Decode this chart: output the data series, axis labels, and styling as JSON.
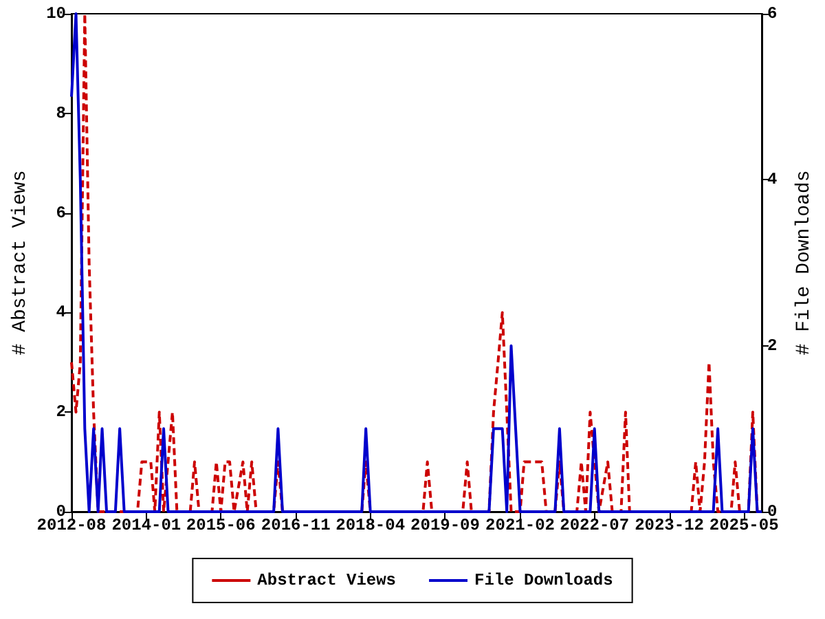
{
  "chart_data": {
    "type": "line",
    "ylabel": "# Abstract Views",
    "y2label": "# File Downloads",
    "xlim": [
      "2012-08",
      "2025-09"
    ],
    "xticks": [
      "2012-08",
      "2014-01",
      "2015-06",
      "2016-11",
      "2018-04",
      "2019-09",
      "2021-02",
      "2022-07",
      "2023-12",
      "2025-05"
    ],
    "ylim": [
      0,
      10
    ],
    "yticks": [
      0,
      2,
      4,
      6,
      8,
      10
    ],
    "y2lim": [
      0,
      6
    ],
    "y2ticks": [
      0,
      2,
      4,
      6
    ],
    "grid": false,
    "legend": "bottom",
    "marker": "none",
    "series": [
      {
        "name": "Abstract Views",
        "color": "#cc0000",
        "line_style": "dashed",
        "x": [
          "2012-08",
          "2012-09",
          "2012-10",
          "2012-11",
          "2012-12",
          "2013-01",
          "2013-02",
          "2013-11",
          "2013-12",
          "2014-02",
          "2014-03",
          "2014-04",
          "2014-05",
          "2014-07",
          "2014-08",
          "2014-11",
          "2014-12",
          "2015-01",
          "2015-04",
          "2015-05",
          "2015-06",
          "2015-07",
          "2015-08",
          "2015-09",
          "2015-11",
          "2015-12",
          "2016-01",
          "2016-02",
          "2016-06",
          "2016-07",
          "2016-08",
          "2018-02",
          "2018-03",
          "2018-04",
          "2019-04",
          "2019-05",
          "2019-06",
          "2020-01",
          "2020-02",
          "2020-03",
          "2020-07",
          "2020-08",
          "2020-09",
          "2020-10",
          "2020-11",
          "2020-12",
          "2021-02",
          "2021-03",
          "2021-07",
          "2021-08",
          "2021-10",
          "2021-11",
          "2021-12",
          "2022-03",
          "2022-04",
          "2022-05",
          "2022-06",
          "2022-07",
          "2022-08",
          "2022-10",
          "2022-11",
          "2023-01",
          "2023-02",
          "2023-03",
          "2024-05",
          "2024-06",
          "2024-07",
          "2024-08",
          "2024-09",
          "2024-10",
          "2024-11",
          "2025-02",
          "2025-03",
          "2025-04",
          "2025-06",
          "2025-07",
          "2025-08",
          "2025-09"
        ],
        "values": [
          3,
          2,
          3,
          10,
          5,
          2,
          0,
          0,
          1,
          1,
          0,
          2,
          0,
          2,
          0,
          0,
          1,
          0,
          0,
          1,
          0,
          1,
          1,
          0,
          1,
          0,
          1,
          0,
          0,
          1,
          0,
          0,
          1,
          0,
          0,
          1,
          0,
          0,
          1,
          0,
          0,
          2,
          3,
          4,
          2,
          0,
          0,
          1,
          1,
          0,
          0,
          1,
          0,
          0,
          1,
          0,
          2,
          1,
          0,
          1,
          0,
          0,
          2,
          0,
          0,
          1,
          0,
          1,
          3,
          1,
          0,
          0,
          1,
          0,
          0,
          2,
          0,
          0
        ]
      },
      {
        "name": "File Downloads",
        "color": "#0000cc",
        "line_style": "solid",
        "axis": "y2",
        "x": [
          "2012-08",
          "2012-09",
          "2012-10",
          "2012-11",
          "2012-12",
          "2013-01",
          "2013-02",
          "2013-03",
          "2013-04",
          "2013-06",
          "2013-07",
          "2013-08",
          "2014-04",
          "2014-05",
          "2014-06",
          "2016-06",
          "2016-07",
          "2016-08",
          "2018-02",
          "2018-03",
          "2018-04",
          "2020-07",
          "2020-08",
          "2020-09",
          "2020-10",
          "2020-11",
          "2020-12",
          "2021-01",
          "2021-02",
          "2021-10",
          "2021-11",
          "2021-12",
          "2022-06",
          "2022-07",
          "2022-08",
          "2024-10",
          "2024-11",
          "2024-12",
          "2025-06",
          "2025-07",
          "2025-08",
          "2025-09"
        ],
        "values": [
          5,
          6,
          4,
          1,
          0,
          1,
          0,
          1,
          0,
          0,
          1,
          0,
          0,
          1,
          0,
          0,
          1,
          0,
          0,
          1,
          0,
          0,
          1,
          1,
          1,
          0,
          2,
          1,
          0,
          0,
          1,
          0,
          0,
          1,
          0,
          0,
          1,
          0,
          0,
          1,
          0,
          0
        ]
      }
    ]
  }
}
